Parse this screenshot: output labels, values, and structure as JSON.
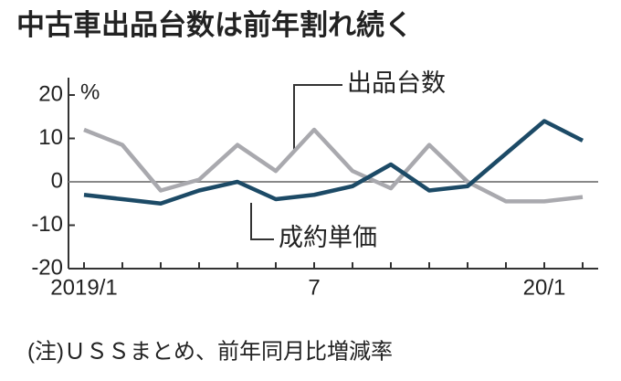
{
  "chart_data": {
    "type": "line",
    "title": "中古車出品台数は前年割れ続く",
    "y_unit": "%",
    "note": "(注)ＵＳＳまとめ、前年同月比増減率",
    "categories": [
      "2019/1",
      null,
      null,
      null,
      null,
      null,
      "7",
      null,
      null,
      null,
      null,
      null,
      "20/1",
      null
    ],
    "series": [
      {
        "name": "出品台数",
        "color": "#a9a9ae",
        "values": [
          12,
          8.5,
          -2,
          0.5,
          8.5,
          2.5,
          12,
          2.5,
          -1.5,
          8.5,
          0,
          -4.5,
          -4.5,
          -3.5
        ]
      },
      {
        "name": "成約単価",
        "color": "#1c4a66",
        "values": [
          -3,
          -4,
          -5,
          -2,
          0,
          -4,
          -3,
          -1,
          4,
          -2,
          -1,
          6.5,
          14,
          9.5
        ]
      }
    ],
    "ylim": [
      -20,
      24
    ],
    "yticks": [
      20,
      10,
      0,
      -10,
      -20
    ],
    "grid": false
  }
}
